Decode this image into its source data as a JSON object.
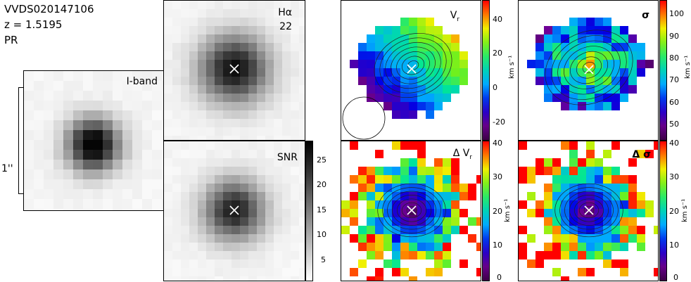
{
  "object": {
    "id": "VVDS020147106",
    "redshift": "z = 1.5195",
    "class": "PR"
  },
  "scale_label": "1''",
  "panels": {
    "iband": {
      "label": "I-band"
    },
    "halpha": {
      "label": "Hα",
      "sublabel": "22"
    },
    "snr": {
      "label": "SNR",
      "ticks": [
        "25",
        "20",
        "15",
        "10",
        "5"
      ]
    },
    "vr": {
      "label": "V",
      "label_sub": "r",
      "ticks": [
        "40",
        "20",
        "0",
        "-20"
      ],
      "unit": "km s⁻¹"
    },
    "sigma": {
      "label": "σ",
      "ticks": [
        "100",
        "90",
        "80",
        "70",
        "60",
        "50"
      ],
      "unit": "km s⁻¹"
    },
    "dvr": {
      "label": "Δ V",
      "label_sub": "r",
      "ticks": [
        "40",
        "30",
        "20",
        "10",
        "0"
      ],
      "unit": "km s⁻¹"
    },
    "dsigma": {
      "label": "Δ σ",
      "ticks": [
        "40",
        "30",
        "20",
        "10",
        "0"
      ],
      "unit": "km s⁻¹"
    }
  },
  "colors": {
    "frame": "#000000",
    "marker": "#ffffff",
    "background": "#ffffff"
  }
}
